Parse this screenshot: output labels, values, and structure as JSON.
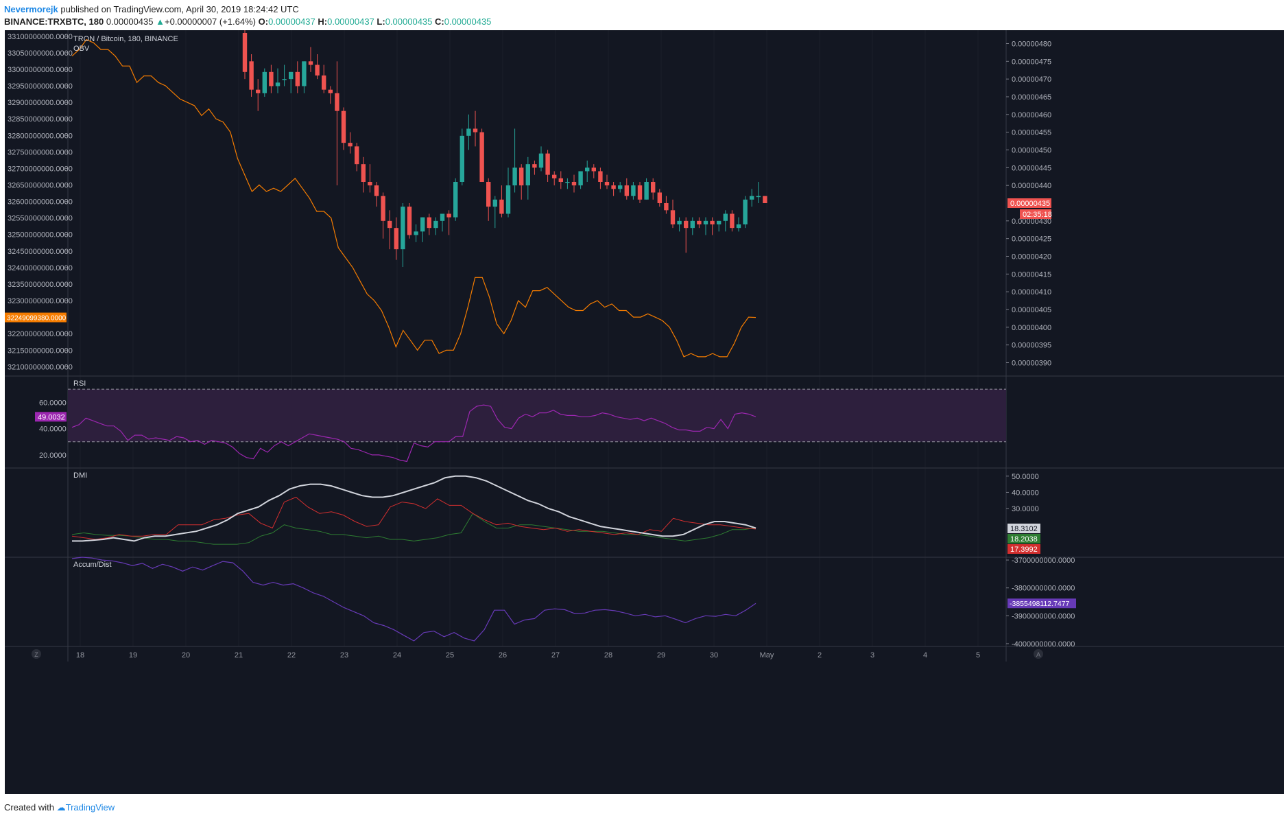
{
  "header": {
    "author": "Nevermorejk",
    "published_text": "published on TradingView.com, April 30, 2019 18:24:42 UTC",
    "symbol_label": "BINANCE:TRXBTC, 180",
    "last_price": "0.00000435",
    "change_arrow": "▲",
    "change": "+0.00000007 (+1.64%)",
    "o_label": "O:",
    "o_value": "0.00000437",
    "h_label": "H:",
    "h_value": "0.00000437",
    "l_label": "L:",
    "l_value": "0.00000435",
    "c_label": "C:",
    "c_value": "0.00000435"
  },
  "footer": {
    "created_with": "Created with",
    "brand": "TradingView"
  },
  "colors": {
    "background": "#131722",
    "grid": "#2a2e39",
    "up": "#26a69a",
    "down": "#ef5350",
    "obv": "#f57c00",
    "rsi": "#9c27b0",
    "rsi_band": "#2d1f3d",
    "dmi_adx": "#d1d4dc",
    "dmi_plus": "#2e7d32",
    "dmi_minus": "#d32f2f",
    "accum": "#673ab7",
    "text": "#b2b5be"
  },
  "panes": {
    "main_title": "TRON / Bitcoin, 180, BINANCE",
    "obv_label": "OBV",
    "rsi_label": "RSI",
    "dmi_label": "DMI",
    "accum_label": "Accum/Dist"
  },
  "axes": {
    "price_ticks": [
      "0.00000480",
      "0.00000475",
      "0.00000470",
      "0.00000465",
      "0.00000460",
      "0.00000455",
      "0.00000450",
      "0.00000445",
      "0.00000440",
      "0.00000430",
      "0.00000425",
      "0.00000420",
      "0.00000415",
      "0.00000410",
      "0.00000405",
      "0.00000400",
      "0.00000395",
      "0.00000390"
    ],
    "obv_ticks": [
      "33100000000.0000",
      "33050000000.0000",
      "33000000000.0000",
      "32950000000.0000",
      "32900000000.0000",
      "32850000000.0000",
      "32800000000.0000",
      "32750000000.0000",
      "32700000000.0000",
      "32650000000.0000",
      "32600000000.0000",
      "32550000000.0000",
      "32500000000.0000",
      "32450000000.0000",
      "32400000000.0000",
      "32350000000.0000",
      "32300000000.0000",
      "32200000000.0000",
      "32150000000.0000",
      "32100000000.0000"
    ],
    "rsi_ticks": [
      "60.0000",
      "40.0000",
      "20.0000"
    ],
    "dmi_ticks": [
      "50.0000",
      "40.0000",
      "30.0000"
    ],
    "accum_ticks": [
      "-3700000000.0000",
      "-3800000000.0000",
      "-3900000000.0000",
      "-4000000000.0000"
    ],
    "time_ticks": [
      "18",
      "19",
      "20",
      "21",
      "22",
      "23",
      "24",
      "25",
      "26",
      "27",
      "28",
      "29",
      "30",
      "May",
      "2",
      "3",
      "4",
      "5"
    ]
  },
  "badges": {
    "price_last": "0.00000435",
    "countdown": "02:35:18",
    "obv_last": "32249099380.0000",
    "rsi_last": "49.0032",
    "dmi_adx": "18.3102",
    "dmi_plus": "18.2038",
    "dmi_minus": "17.3992",
    "accum_last": "-3855498112.7477"
  },
  "buttons": {
    "left_corner": "Z",
    "right_corner": "A"
  },
  "chart_data": {
    "type": "candlestick",
    "price_range": [
      3.87e-06,
      4.83e-06
    ],
    "candles_ohlc": [
      [
        4.83e-06,
        4.85e-06,
        4.7e-06,
        4.72e-06
      ],
      [
        4.75e-06,
        4.77e-06,
        4.65e-06,
        4.67e-06
      ],
      [
        4.67e-06,
        4.7e-06,
        4.61e-06,
        4.66e-06
      ],
      [
        4.66e-06,
        4.73e-06,
        4.65e-06,
        4.72e-06
      ],
      [
        4.72e-06,
        4.74e-06,
        4.66e-06,
        4.68e-06
      ],
      [
        4.68e-06,
        4.73e-06,
        4.66e-06,
        4.69e-06
      ],
      [
        4.7e-06,
        4.74e-06,
        4.68e-06,
        4.7e-06
      ],
      [
        4.7e-06,
        4.72e-06,
        4.66e-06,
        4.72e-06
      ],
      [
        4.72e-06,
        4.75e-06,
        4.66e-06,
        4.68e-06
      ],
      [
        4.68e-06,
        4.75e-06,
        4.66e-06,
        4.75e-06
      ],
      [
        4.75e-06,
        4.79e-06,
        4.72e-06,
        4.74e-06
      ],
      [
        4.74e-06,
        4.77e-06,
        4.7e-06,
        4.71e-06
      ],
      [
        4.71e-06,
        4.74e-06,
        4.66e-06,
        4.67e-06
      ],
      [
        4.67e-06,
        4.68e-06,
        4.63e-06,
        4.66e-06
      ],
      [
        4.66e-06,
        4.75e-06,
        4.4e-06,
        4.61e-06
      ],
      [
        4.61e-06,
        4.62e-06,
        4.5e-06,
        4.52e-06
      ],
      [
        4.52e-06,
        4.55e-06,
        4.49e-06,
        4.51e-06
      ],
      [
        4.51e-06,
        4.52e-06,
        4.44e-06,
        4.46e-06
      ],
      [
        4.46e-06,
        4.48e-06,
        4.38e-06,
        4.41e-06
      ],
      [
        4.41e-06,
        4.46e-06,
        4.38e-06,
        4.4e-06
      ],
      [
        4.4e-06,
        4.41e-06,
        4.34e-06,
        4.37e-06
      ],
      [
        4.37e-06,
        4.38e-06,
        4.25e-06,
        4.3e-06
      ],
      [
        4.3e-06,
        4.33e-06,
        4.22e-06,
        4.28e-06
      ],
      [
        4.28e-06,
        4.31e-06,
        4.19e-06,
        4.22e-06
      ],
      [
        4.22e-06,
        4.35e-06,
        4.17e-06,
        4.34e-06
      ],
      [
        4.34e-06,
        4.35e-06,
        4.25e-06,
        4.26e-06
      ],
      [
        4.26e-06,
        4.29e-06,
        4.24e-06,
        4.27e-06
      ],
      [
        4.27e-06,
        4.31e-06,
        4.24e-06,
        4.31e-06
      ],
      [
        4.31e-06,
        4.32e-06,
        4.26e-06,
        4.28e-06
      ],
      [
        4.28e-06,
        4.31e-06,
        4.26e-06,
        4.3e-06
      ],
      [
        4.3e-06,
        4.32e-06,
        4.27e-06,
        4.32e-06
      ],
      [
        4.32e-06,
        4.33e-06,
        4.26e-06,
        4.31e-06
      ],
      [
        4.31e-06,
        4.42e-06,
        4.3e-06,
        4.41e-06
      ],
      [
        4.41e-06,
        4.56e-06,
        4.4e-06,
        4.54e-06
      ],
      [
        4.54e-06,
        4.6e-06,
        4.5e-06,
        4.56e-06
      ],
      [
        4.56e-06,
        4.61e-06,
        4.51e-06,
        4.55e-06
      ],
      [
        4.55e-06,
        4.56e-06,
        4.41e-06,
        4.41e-06
      ],
      [
        4.41e-06,
        4.42e-06,
        4.3e-06,
        4.34e-06
      ],
      [
        4.34e-06,
        4.37e-06,
        4.28e-06,
        4.36e-06
      ],
      [
        4.36e-06,
        4.4e-06,
        4.31e-06,
        4.32e-06
      ],
      [
        4.32e-06,
        4.45e-06,
        4.31e-06,
        4.4e-06
      ],
      [
        4.4e-06,
        4.56e-06,
        4.38e-06,
        4.45e-06
      ],
      [
        4.45e-06,
        4.46e-06,
        4.36e-06,
        4.4e-06
      ],
      [
        4.4e-06,
        4.48e-06,
        4.36e-06,
        4.46e-06
      ],
      [
        4.46e-06,
        4.47e-06,
        4.43e-06,
        4.45e-06
      ],
      [
        4.45e-06,
        4.51e-06,
        4.44e-06,
        4.49e-06
      ],
      [
        4.49e-06,
        4.5e-06,
        4.41e-06,
        4.43e-06
      ],
      [
        4.43e-06,
        4.44e-06,
        4.4e-06,
        4.42e-06
      ],
      [
        4.42e-06,
        4.44e-06,
        4.39e-06,
        4.41e-06
      ],
      [
        4.41e-06,
        4.42e-06,
        4.39e-06,
        4.41e-06
      ],
      [
        4.41e-06,
        4.43e-06,
        4.38e-06,
        4.4e-06
      ],
      [
        4.4e-06,
        4.44e-06,
        4.39e-06,
        4.44e-06
      ],
      [
        4.44e-06,
        4.47e-06,
        4.41e-06,
        4.45e-06
      ],
      [
        4.45e-06,
        4.46e-06,
        4.42e-06,
        4.44e-06
      ],
      [
        4.44e-06,
        4.45e-06,
        4.39e-06,
        4.41e-06
      ],
      [
        4.41e-06,
        4.43e-06,
        4.39e-06,
        4.4e-06
      ],
      [
        4.4e-06,
        4.41e-06,
        4.37e-06,
        4.39e-06
      ],
      [
        4.39e-06,
        4.41e-06,
        4.38e-06,
        4.4e-06
      ],
      [
        4.4e-06,
        4.42e-06,
        4.36e-06,
        4.37e-06
      ],
      [
        4.37e-06,
        4.41e-06,
        4.36e-06,
        4.4e-06
      ],
      [
        4.4e-06,
        4.41e-06,
        4.35e-06,
        4.36e-06
      ],
      [
        4.36e-06,
        4.42e-06,
        4.36e-06,
        4.41e-06
      ],
      [
        4.41e-06,
        4.42e-06,
        4.36e-06,
        4.38e-06
      ],
      [
        4.38e-06,
        4.39e-06,
        4.34e-06,
        4.35e-06
      ],
      [
        4.35e-06,
        4.37e-06,
        4.32e-06,
        4.33e-06
      ],
      [
        4.33e-06,
        4.36e-06,
        4.28e-06,
        4.29e-06
      ],
      [
        4.29e-06,
        4.31e-06,
        4.27e-06,
        4.3e-06
      ],
      [
        4.3e-06,
        4.31e-06,
        4.21e-06,
        4.28e-06
      ],
      [
        4.28e-06,
        4.31e-06,
        4.26e-06,
        4.3e-06
      ],
      [
        4.3e-06,
        4.31e-06,
        4.28e-06,
        4.29e-06
      ],
      [
        4.29e-06,
        4.31e-06,
        4.26e-06,
        4.3e-06
      ],
      [
        4.3e-06,
        4.31e-06,
        4.26e-06,
        4.29e-06
      ],
      [
        4.29e-06,
        4.3e-06,
        4.27e-06,
        4.3e-06
      ],
      [
        4.3e-06,
        4.33e-06,
        4.27e-06,
        4.32e-06
      ],
      [
        4.32e-06,
        4.33e-06,
        4.27e-06,
        4.28e-06
      ],
      [
        4.28e-06,
        4.31e-06,
        4.27e-06,
        4.29e-06
      ],
      [
        4.29e-06,
        4.37e-06,
        4.28e-06,
        4.36e-06
      ],
      [
        4.36e-06,
        4.39e-06,
        4.34e-06,
        4.37e-06
      ],
      [
        4.37e-06,
        4.41e-06,
        4.35e-06,
        4.37e-06
      ],
      [
        4.37e-06,
        4.37e-06,
        4.35e-06,
        4.35e-06
      ]
    ],
    "obv_range": [
      32080000000,
      33110000000
    ],
    "obv": [
      33040000000,
      33060000000,
      33090000000,
      33080000000,
      33060000000,
      33060000000,
      33040000000,
      33010000000,
      33010000000,
      32960000000,
      32980000000,
      32980000000,
      32960000000,
      32950000000,
      32930000000,
      32910000000,
      32900000000,
      32890000000,
      32860000000,
      32880000000,
      32850000000,
      32840000000,
      32810000000,
      32730000000,
      32680000000,
      32630000000,
      32650000000,
      32630000000,
      32640000000,
      32630000000,
      32650000000,
      32670000000,
      32640000000,
      32610000000,
      32570000000,
      32570000000,
      32550000000,
      32460000000,
      32430000000,
      32400000000,
      32360000000,
      32320000000,
      32300000000,
      32270000000,
      32220000000,
      32160000000,
      32210000000,
      32180000000,
      32150000000,
      32180000000,
      32180000000,
      32140000000,
      32150000000,
      32150000000,
      32200000000,
      32280000000,
      32370000000,
      32370000000,
      32310000000,
      32230000000,
      32200000000,
      32240000000,
      32300000000,
      32280000000,
      32330000000,
      32330000000,
      32340000000,
      32320000000,
      32300000000,
      32280000000,
      32270000000,
      32270000000,
      32290000000,
      32300000000,
      32280000000,
      32290000000,
      32270000000,
      32270000000,
      32250000000,
      32250000000,
      32260000000,
      32250000000,
      32240000000,
      32220000000,
      32180000000,
      32130000000,
      32140000000,
      32130000000,
      32130000000,
      32140000000,
      32130000000,
      32130000000,
      32170000000,
      32220000000,
      32250000000,
      32249099380
    ],
    "rsi_range": [
      10,
      80
    ],
    "rsi_bands": [
      30,
      70
    ],
    "rsi": [
      41,
      43,
      48,
      46,
      44,
      42,
      42,
      38,
      31,
      35,
      35,
      32,
      33,
      32,
      31,
      34,
      33,
      30,
      31,
      28,
      31,
      30,
      29,
      26,
      21,
      18,
      17,
      25,
      22,
      27,
      30,
      27,
      30,
      33,
      36,
      35,
      34,
      33,
      32,
      30,
      25,
      24,
      22,
      20,
      20,
      19,
      18,
      16,
      15,
      29,
      27,
      26,
      30,
      30,
      30,
      34,
      34,
      53,
      57,
      58,
      57,
      47,
      41,
      40,
      48,
      51,
      49,
      52,
      52,
      54,
      51,
      50,
      50,
      49,
      49,
      50,
      52,
      51,
      49,
      48,
      47,
      48,
      46,
      48,
      46,
      44,
      41,
      39,
      39,
      38,
      38,
      41,
      40,
      47,
      40,
      51,
      52,
      51,
      49
    ],
    "dmi_range": [
      0,
      55
    ],
    "dmi_adx": [
      10,
      10,
      10.5,
      11,
      12,
      11,
      10,
      12,
      13,
      13,
      14,
      15,
      16,
      18,
      20,
      23,
      27,
      29,
      31,
      35,
      38,
      42,
      44,
      45,
      45,
      44,
      42,
      40,
      38,
      37,
      37,
      38,
      40,
      42,
      44,
      46,
      49,
      50,
      50,
      49,
      47,
      44,
      41,
      38,
      35,
      33,
      30,
      28,
      25,
      23,
      21,
      19,
      18,
      17,
      16,
      15,
      14,
      13,
      13,
      14,
      17,
      20,
      22,
      22,
      21,
      20,
      18
    ],
    "dmi_plus": [
      14,
      15,
      14,
      13.5,
      13.5,
      13,
      12,
      11,
      11,
      10,
      10,
      9,
      8,
      8,
      8,
      9,
      13,
      15,
      20,
      18,
      17,
      16,
      14,
      14,
      13,
      12,
      13,
      11,
      11,
      10,
      11,
      12,
      14,
      15,
      27,
      22,
      18,
      18,
      20,
      20,
      19,
      18,
      17,
      16,
      16,
      16,
      15,
      14,
      14,
      13,
      12,
      11,
      10,
      11,
      12,
      14,
      17,
      17,
      18.2038
    ],
    "dmi_minus": [
      13,
      12,
      11,
      12,
      14,
      13,
      13,
      14,
      14,
      20,
      20,
      20,
      23,
      24,
      26,
      27,
      21,
      18,
      34,
      37,
      31,
      27,
      28,
      26,
      22,
      19,
      20,
      31,
      34,
      33,
      30,
      36,
      32,
      32,
      27,
      23,
      20,
      21,
      19,
      18,
      17,
      18,
      16,
      17,
      16,
      15,
      14,
      15,
      14,
      17,
      16,
      24,
      22,
      21,
      20,
      20,
      19,
      18,
      17.3992
    ],
    "accum_range": [
      -4010000000,
      -3690000000
    ],
    "accum": [
      -3695000000,
      -3690000000,
      -3693000000,
      -3700000000,
      -3703000000,
      -3710000000,
      -3720000000,
      -3712000000,
      -3730000000,
      -3715000000,
      -3725000000,
      -3740000000,
      -3725000000,
      -3736000000,
      -3720000000,
      -3705000000,
      -3710000000,
      -3740000000,
      -3780000000,
      -3790000000,
      -3780000000,
      -3790000000,
      -3785000000,
      -3800000000,
      -3818000000,
      -3830000000,
      -3850000000,
      -3870000000,
      -3885000000,
      -3900000000,
      -3925000000,
      -3935000000,
      -3950000000,
      -3970000000,
      -3990000000,
      -3960000000,
      -3955000000,
      -3975000000,
      -3960000000,
      -3980000000,
      -3990000000,
      -3950000000,
      -3880000000,
      -3880000000,
      -3930000000,
      -3915000000,
      -3910000000,
      -3880000000,
      -3875000000,
      -3878000000,
      -3892000000,
      -3890000000,
      -3880000000,
      -3878000000,
      -3882000000,
      -3890000000,
      -3900000000,
      -3895000000,
      -3904000000,
      -3900000000,
      -3912000000,
      -3925000000,
      -3910000000,
      -3900000000,
      -3902000000,
      -3895000000,
      -3900000000,
      -3880000000,
      -3855498112
    ]
  }
}
